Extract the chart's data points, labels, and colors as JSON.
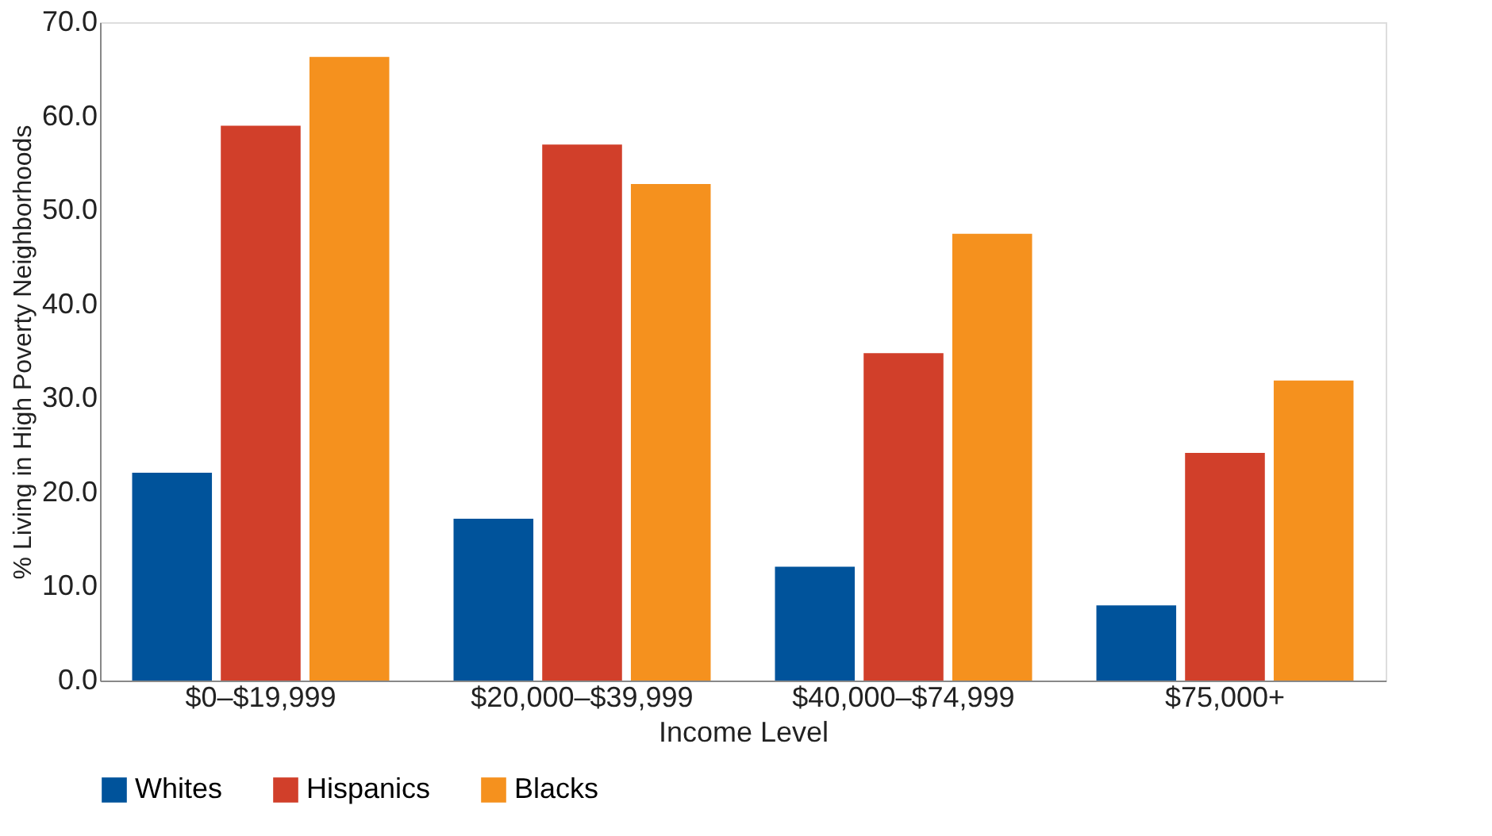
{
  "chart_data": {
    "type": "bar",
    "xlabel": "Income Level",
    "ylabel": "% Living in High Poverty Neighborhoods",
    "categories": [
      "$0–$19,999",
      "$20,000–$39,999",
      "$40,000–$74,999",
      "$75,000+"
    ],
    "series": [
      {
        "name": "Whites",
        "color": "#00539b",
        "values": [
          22.1,
          17.2,
          12.1,
          8.0
        ]
      },
      {
        "name": "Hispanics",
        "color": "#d13f2a",
        "values": [
          59.0,
          57.0,
          34.8,
          24.2
        ]
      },
      {
        "name": "Blacks",
        "color": "#f5911e",
        "values": [
          66.3,
          52.8,
          47.5,
          31.9
        ]
      }
    ],
    "ylim": [
      0,
      70
    ],
    "yticks": [
      {
        "value": 0,
        "label": "0.0"
      },
      {
        "value": 10,
        "label": "10.0"
      },
      {
        "value": 20,
        "label": "20.0"
      },
      {
        "value": 30,
        "label": "30.0"
      },
      {
        "value": 40,
        "label": "40.0"
      },
      {
        "value": 50,
        "label": "50.0"
      },
      {
        "value": 60,
        "label": "60.0"
      },
      {
        "value": 70,
        "label": "70.0"
      }
    ],
    "grid": false,
    "legend": "bottom"
  }
}
